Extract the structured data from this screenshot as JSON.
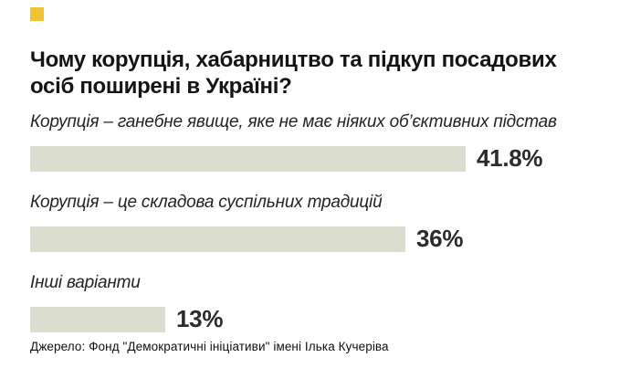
{
  "colors": {
    "accent": "#F1C232",
    "bar": "#DBDDCE",
    "title_text": "#141414",
    "label_text": "#232323",
    "value_text": "#2B2B2B"
  },
  "header": {
    "title": "Чому корупція, хабарництво та підкуп посадових осіб поширені в Україні?"
  },
  "footer": {
    "source": "Джерело: Фонд \"Демократичні ініціативи\" імені Ілька Кучеріва"
  },
  "chart_data": {
    "type": "bar",
    "orientation": "horizontal",
    "title": "Чому корупція, хабарництво та підкуп посадових осіб поширені в Україні?",
    "categories": [
      "Корупція – ганебне явище, яке не має ніяких об’єктивних підстав",
      "Корупція – це складова суспільних традицій",
      "Інші варіанти"
    ],
    "values": [
      41.8,
      36,
      13
    ],
    "value_labels": [
      "41.8%",
      "36%",
      "13%"
    ],
    "xlim": [
      0,
      55
    ],
    "grid": false,
    "legend": "none",
    "bar_color": "#DBDDCE",
    "source": "Джерело: Фонд \"Демократичні ініціативи\" імені Ілька Кучеріва"
  }
}
